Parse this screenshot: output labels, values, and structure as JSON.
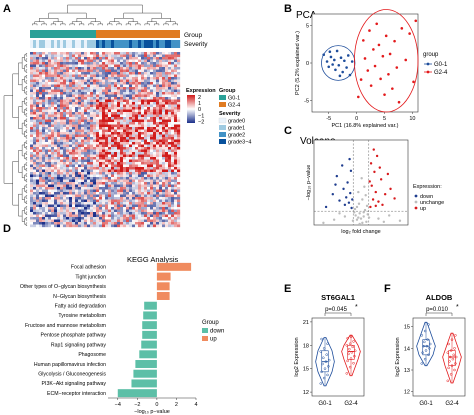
{
  "panels": {
    "a": "A",
    "b": "B",
    "c": "C",
    "d": "D",
    "e": "E",
    "f": "F"
  },
  "colors": {
    "g0": "#1f4e9c",
    "g2": "#e31a1c",
    "down": "#1f3d8f",
    "up": "#d7191c",
    "unchange": "#bdbdbd",
    "kegg_down": "#5cbfa7",
    "kegg_up": "#f08b5f",
    "group_g0": "#2aa198",
    "group_g2": "#e07b22",
    "heat_low": "#1b2f8a",
    "heat_mid": "#ffffff",
    "heat_high": "#d11a1a",
    "sev_grade0": "#eaf3fb",
    "sev_grade1": "#9ecae1",
    "sev_grade2": "#4292c6",
    "sev_grade3_4": "#08519c"
  },
  "heatmap": {
    "annot_group": "Group",
    "annot_severity": "Severity",
    "legend": {
      "expression_title": "Expression",
      "expression_ticks": [
        "2",
        "1",
        "0",
        "−1",
        "−2"
      ],
      "group_title": "Group",
      "group_items": [
        "G0-1",
        "G2-4"
      ],
      "severity_title": "Severity",
      "severity_items": [
        "grade0",
        "grade1",
        "grade2",
        "grade3~4"
      ]
    }
  },
  "chart_data": [
    {
      "panel": "B",
      "type": "scatter",
      "title": "PCA",
      "xlabel": "PC1 (16.8% explained var.)",
      "ylabel": "PC2 (5.2% explained var.)",
      "xlim": [
        -8,
        11
      ],
      "ylim": [
        -6.5,
        6.5
      ],
      "xticks": [
        -5,
        0,
        5,
        10
      ],
      "yticks": [
        -5,
        0,
        5
      ],
      "legend_title": "group",
      "legend_position": "right",
      "series": [
        {
          "name": "G0-1",
          "points": [
            [
              -5.9,
              1.1
            ],
            [
              -5.3,
              0.2
            ],
            [
              -5.0,
              -0.5
            ],
            [
              -4.6,
              0.8
            ],
            [
              -4.3,
              -0.2
            ],
            [
              -4.0,
              0.4
            ],
            [
              -3.8,
              -0.9
            ],
            [
              -3.5,
              1.6
            ],
            [
              -3.2,
              -0.3
            ],
            [
              -2.8,
              0.7
            ],
            [
              -2.5,
              -1.2
            ],
            [
              -2.2,
              0.3
            ],
            [
              -1.8,
              -0.6
            ],
            [
              -1.5,
              1.0
            ],
            [
              -1.2,
              -1.6
            ],
            [
              -0.8,
              0.2
            ],
            [
              -3.0,
              -1.7
            ],
            [
              -4.8,
              1.5
            ]
          ]
        },
        {
          "name": "G2-4",
          "points": [
            [
              0.3,
              -4.5
            ],
            [
              0.8,
              -2.2
            ],
            [
              1.2,
              3.0
            ],
            [
              1.5,
              0.6
            ],
            [
              2.0,
              -1.0
            ],
            [
              2.3,
              4.3
            ],
            [
              2.6,
              -3.0
            ],
            [
              3.0,
              1.8
            ],
            [
              3.3,
              -0.4
            ],
            [
              3.6,
              5.2
            ],
            [
              4.0,
              2.4
            ],
            [
              4.3,
              -2.1
            ],
            [
              4.7,
              0.9
            ],
            [
              5.0,
              -4.2
            ],
            [
              5.3,
              3.6
            ],
            [
              5.7,
              -1.5
            ],
            [
              6.0,
              1.2
            ],
            [
              6.4,
              -3.4
            ],
            [
              6.8,
              2.9
            ],
            [
              7.2,
              -0.6
            ],
            [
              7.6,
              -5.2
            ],
            [
              8.1,
              4.6
            ],
            [
              8.8,
              0.4
            ],
            [
              9.5,
              3.9
            ],
            [
              10.2,
              -2.5
            ],
            [
              10.6,
              5.6
            ]
          ]
        }
      ]
    },
    {
      "panel": "C",
      "type": "scatter",
      "title": "Volcano",
      "xlabel": "log₂ fold change",
      "ylabel": "−log₁₀ p−value",
      "xlim": [
        -3.5,
        3.5
      ],
      "ylim": [
        0,
        8
      ],
      "thresholds": {
        "fc": [
          -0.58,
          0.58
        ],
        "p": 1.3
      },
      "legend_title": "Expression:",
      "legend_position": "right",
      "series": [
        {
          "name": "down",
          "points": [
            [
              -0.7,
              1.6
            ],
            [
              -0.9,
              2.1
            ],
            [
              -1.1,
              2.6
            ],
            [
              -0.8,
              3.0
            ],
            [
              -1.3,
              3.4
            ],
            [
              -1.6,
              2.3
            ],
            [
              -1.0,
              4.0
            ],
            [
              -1.8,
              4.6
            ],
            [
              -0.75,
              5.1
            ],
            [
              -1.2,
              1.9
            ],
            [
              -2.1,
              2.9
            ],
            [
              -1.4,
              5.6
            ],
            [
              -0.85,
              6.2
            ],
            [
              -2.6,
              1.7
            ],
            [
              -1.9,
              3.8
            ],
            [
              -0.65,
              2.4
            ]
          ]
        },
        {
          "name": "unchange",
          "points": [
            [
              -0.3,
              0.5
            ],
            [
              0.2,
              0.8
            ],
            [
              -0.1,
              1.1
            ],
            [
              0.4,
              0.3
            ],
            [
              -0.5,
              1.2
            ],
            [
              0.1,
              0.2
            ],
            [
              -0.2,
              0.7
            ],
            [
              0.3,
              1.4
            ],
            [
              -0.4,
              0.9
            ],
            [
              0.5,
              1.0
            ],
            [
              0.0,
              0.6
            ],
            [
              -0.6,
              0.4
            ],
            [
              0.6,
              0.7
            ],
            [
              -0.1,
              0.1
            ],
            [
              0.2,
              1.2
            ],
            [
              -1.2,
              0.8
            ],
            [
              1.3,
              0.6
            ],
            [
              -2.0,
              0.5
            ],
            [
              2.1,
              0.9
            ],
            [
              -1.6,
              1.1
            ],
            [
              1.7,
              0.3
            ],
            [
              -2.8,
              0.2
            ],
            [
              2.9,
              0.4
            ],
            [
              0.1,
              2.4
            ],
            [
              -0.2,
              3.1
            ],
            [
              0.25,
              3.6
            ],
            [
              -0.15,
              2.0
            ],
            [
              0.05,
              4.4
            ],
            [
              0.35,
              2.8
            ],
            [
              -0.3,
              1.7
            ],
            [
              0.45,
              1.8
            ],
            [
              -0.45,
              1.5
            ]
          ]
        },
        {
          "name": "up",
          "points": [
            [
              0.7,
              1.7
            ],
            [
              0.9,
              2.4
            ],
            [
              1.1,
              3.1
            ],
            [
              0.8,
              3.7
            ],
            [
              1.3,
              2.2
            ],
            [
              1.5,
              4.3
            ],
            [
              1.0,
              5.0
            ],
            [
              1.8,
              2.9
            ],
            [
              0.75,
              5.8
            ],
            [
              1.2,
              6.5
            ],
            [
              2.2,
              3.4
            ],
            [
              1.6,
              1.9
            ],
            [
              0.95,
              7.1
            ],
            [
              2.5,
              2.5
            ],
            [
              1.4,
              5.4
            ],
            [
              0.65,
              4.1
            ],
            [
              2.0,
              4.8
            ],
            [
              1.1,
              1.8
            ]
          ]
        }
      ]
    },
    {
      "panel": "D",
      "type": "bar",
      "orientation": "horizontal",
      "title": "KEGG Analysis",
      "xlabel": "−log₁₀ p−value",
      "xlim": [
        -5,
        4
      ],
      "xticks": [
        -4,
        -2,
        0,
        2,
        4
      ],
      "legend_title": "Group",
      "legend_position": "right",
      "categories": [
        "Focal adhesion",
        "Tight junction",
        "Other types of O−glycan biosynthesis",
        "N−Glycan biosynthesis",
        "Fatty acid degradation",
        "Tyrosine metabolism",
        "Fructose and mannose metabolism",
        "Pentose phosphate pathway",
        "Rap1 signaling pathway",
        "Phagosome",
        "Human papillomavirus infection",
        "Glycolysis / Gluconeogenesis",
        "PI3K−Akt signaling pathway",
        "ECM−receptor interaction"
      ],
      "values": [
        3.5,
        1.4,
        1.3,
        1.3,
        -1.3,
        -1.4,
        -1.5,
        -1.5,
        -1.6,
        -1.8,
        -2.2,
        -2.4,
        -2.6,
        -4.0
      ],
      "groups": [
        "up",
        "up",
        "up",
        "up",
        "down",
        "down",
        "down",
        "down",
        "down",
        "down",
        "down",
        "down",
        "down",
        "down"
      ],
      "series_names": [
        "down",
        "up"
      ]
    },
    {
      "panel": "E",
      "type": "violin",
      "title": "ST6GAL1",
      "ylabel": "log2 Expression",
      "categories": [
        "G0-1",
        "G2-4"
      ],
      "ylim": [
        11.5,
        21.5
      ],
      "yticks": [
        12,
        15,
        18,
        21
      ],
      "annotation": "p=0.045",
      "annotation_mark": "*",
      "series": [
        {
          "name": "G0-1",
          "median": 15.9,
          "q1": 14.6,
          "q3": 17.3,
          "min": 12.8,
          "max": 19.0,
          "points": [
            13.1,
            13.8,
            14.2,
            14.6,
            15.0,
            15.3,
            15.6,
            15.9,
            16.1,
            16.4,
            16.8,
            17.2,
            17.6,
            18.2,
            18.8
          ]
        },
        {
          "name": "G2-4",
          "median": 17.2,
          "q1": 16.2,
          "q3": 18.0,
          "min": 14.1,
          "max": 19.3,
          "points": [
            14.4,
            15.2,
            15.7,
            16.0,
            16.3,
            16.6,
            16.9,
            17.1,
            17.3,
            17.5,
            17.8,
            18.0,
            18.2,
            18.5,
            18.9,
            19.1
          ]
        }
      ]
    },
    {
      "panel": "F",
      "type": "violin",
      "title": "ALDOB",
      "ylabel": "log2 Expression",
      "categories": [
        "G0-1",
        "G2-4"
      ],
      "ylim": [
        11.8,
        15.4
      ],
      "yticks": [
        12,
        13,
        14,
        15
      ],
      "annotation": "p=0.010",
      "annotation_mark": "*",
      "series": [
        {
          "name": "G0-1",
          "median": 14.1,
          "q1": 13.7,
          "q3": 14.4,
          "min": 13.2,
          "max": 15.2,
          "points": [
            13.3,
            13.5,
            13.7,
            13.8,
            13.9,
            14.0,
            14.1,
            14.1,
            14.2,
            14.3,
            14.4,
            14.6,
            14.8,
            15.1
          ]
        },
        {
          "name": "G2-4",
          "median": 13.6,
          "q1": 13.2,
          "q3": 13.9,
          "min": 12.4,
          "max": 14.7,
          "points": [
            12.5,
            12.8,
            13.0,
            13.1,
            13.2,
            13.3,
            13.4,
            13.5,
            13.6,
            13.6,
            13.7,
            13.8,
            13.9,
            14.0,
            14.2,
            14.4,
            14.6
          ]
        }
      ]
    }
  ]
}
